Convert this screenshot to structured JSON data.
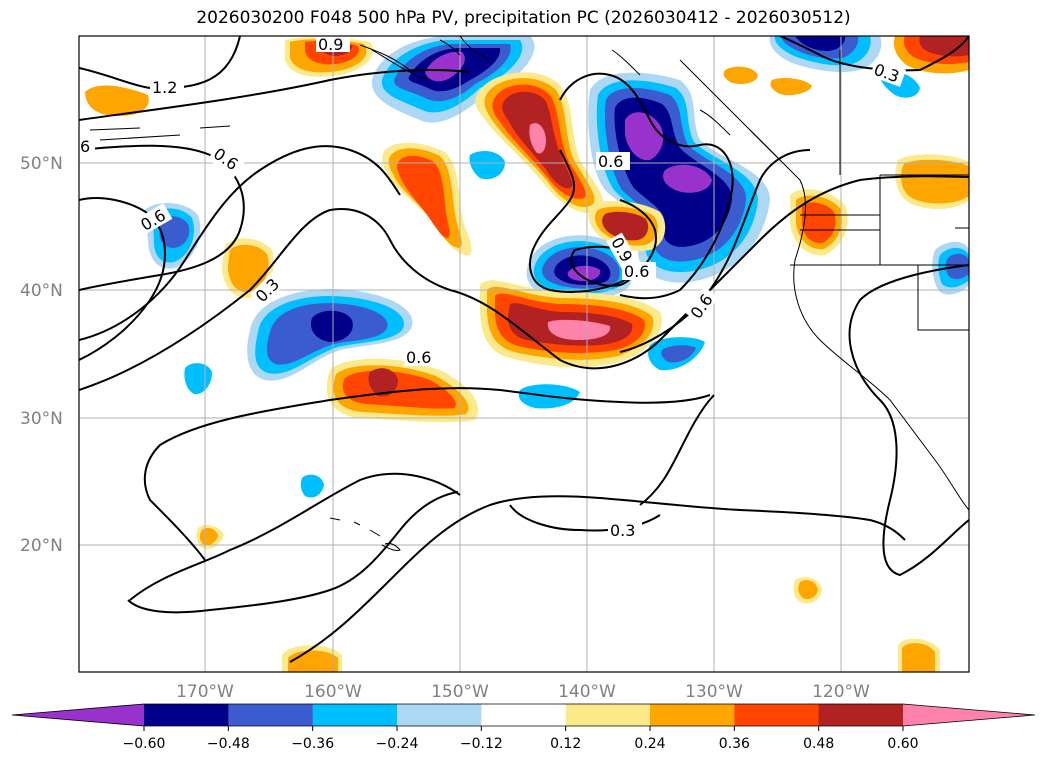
{
  "title": "2026030200 F048 500 hPa PV, precipitation PC (2026030412 - 2026030512)",
  "map": {
    "latitude_labels": [
      "50°N",
      "40°N",
      "30°N",
      "20°N"
    ],
    "longitude_labels": [
      "170°W",
      "160°W",
      "150°W",
      "140°W",
      "130°W",
      "120°W"
    ],
    "contour_labels": [
      "1.2",
      "6",
      "0.6",
      "0.6",
      "0.3",
      "0.9",
      "0.6",
      "0.6",
      "0.9",
      "0.6",
      "0.6",
      "0.3",
      "0.3"
    ]
  },
  "colorbar": {
    "tick_labels": [
      "−0.60",
      "−0.48",
      "−0.36",
      "−0.24",
      "−0.12",
      "0.12",
      "0.24",
      "0.36",
      "0.48",
      "0.60"
    ],
    "colors": [
      "#9932cc",
      "#00008b",
      "#3a5ccf",
      "#00bfff",
      "#add8f5",
      "#ffffff",
      "#fce98a",
      "#ffa500",
      "#ff4500",
      "#b22222",
      "#ff82ab"
    ]
  }
}
